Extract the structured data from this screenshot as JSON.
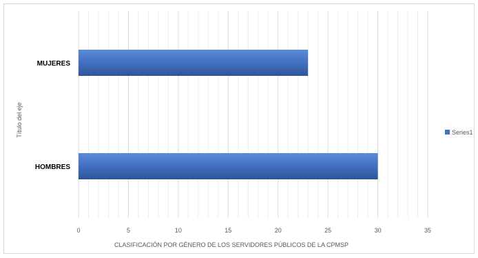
{
  "chart_data": {
    "type": "bar",
    "orientation": "horizontal",
    "categories": [
      "MUJERES",
      "HOMBRES"
    ],
    "series": [
      {
        "name": "Series1",
        "values": [
          23,
          30
        ],
        "color": "#4472c4"
      }
    ],
    "xlabel": "CLASIFICACIÓN POR GÉNERO DE LOS SERVIDORES PÚBLICOS DE LA CPMSP",
    "ylabel": "Título del eje",
    "xlim": [
      0,
      35
    ],
    "xticks": [
      0,
      5,
      10,
      15,
      20,
      25,
      30,
      35
    ],
    "grid": true,
    "legend": "right"
  }
}
